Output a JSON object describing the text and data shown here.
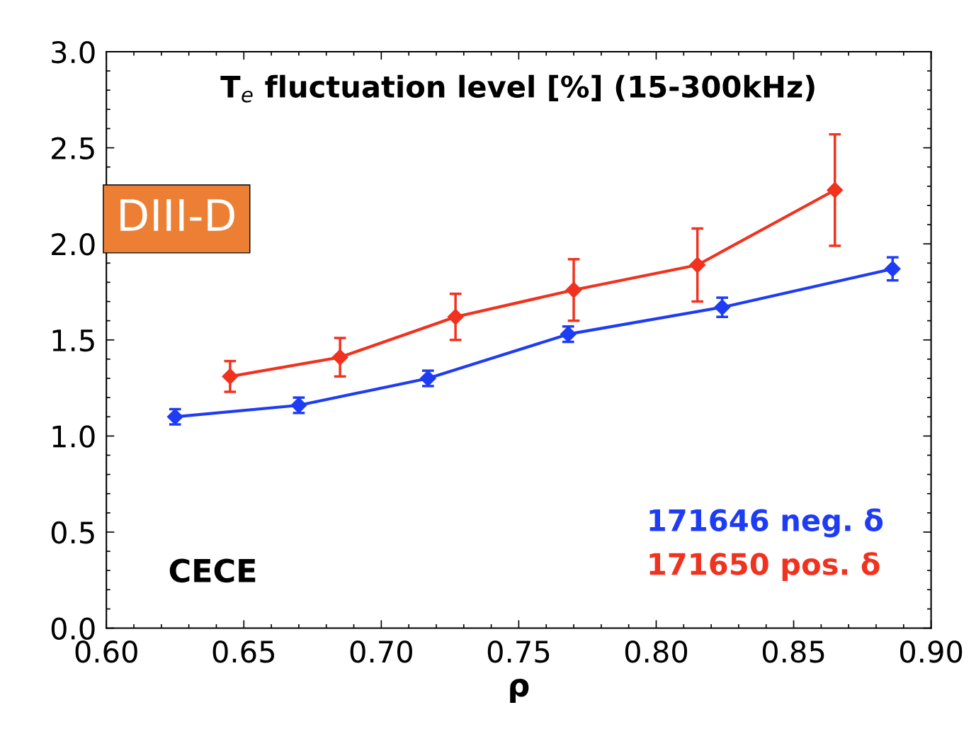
{
  "chart_data": {
    "type": "line",
    "title": "T$_{e}$ fluctuation level [%] (15-300kHz)",
    "xlabel": "ρ",
    "annotations": [
      "DIII-D",
      "CECE"
    ],
    "xlim": [
      0.6,
      0.9
    ],
    "xticks": [
      {
        "value": 0.6,
        "label": "0.60"
      },
      {
        "value": 0.65,
        "label": "0.65"
      },
      {
        "value": 0.7,
        "label": "0.70"
      },
      {
        "value": 0.75,
        "label": "0.75"
      },
      {
        "value": 0.8,
        "label": "0.80"
      },
      {
        "value": 0.85,
        "label": "0.85"
      },
      {
        "value": 0.9,
        "label": "0.90"
      }
    ],
    "ylim": [
      0,
      3
    ],
    "yticks": [
      {
        "value": 0,
        "label": "0.0"
      },
      {
        "value": 0.5,
        "label": "0.5"
      },
      {
        "value": 1,
        "label": "1.0"
      },
      {
        "value": 1.5,
        "label": "1.5"
      },
      {
        "value": 2,
        "label": "2.0"
      },
      {
        "value": 2.5,
        "label": "2.5"
      },
      {
        "value": 3,
        "label": "3.0"
      }
    ],
    "marker": "diamond",
    "line_style": "solid",
    "grid": false,
    "legend": "bottom right",
    "series": [
      {
        "name": "171646 neg. δ",
        "color": "#1f3cf5",
        "x": [
          0.625,
          0.67,
          0.717,
          0.768,
          0.824,
          0.886
        ],
        "values": [
          1.1,
          1.16,
          1.3,
          1.53,
          1.67,
          1.87
        ],
        "errors": [
          0.04,
          0.04,
          0.04,
          0.04,
          0.05,
          0.06
        ]
      },
      {
        "name": "171650 pos. δ",
        "color": "#f0321e",
        "x": [
          0.645,
          0.685,
          0.727,
          0.77,
          0.815,
          0.865
        ],
        "values": [
          1.31,
          1.41,
          1.62,
          1.76,
          1.89,
          2.28
        ],
        "errors": [
          0.08,
          0.1,
          0.12,
          0.16,
          0.19,
          0.29
        ]
      }
    ]
  }
}
